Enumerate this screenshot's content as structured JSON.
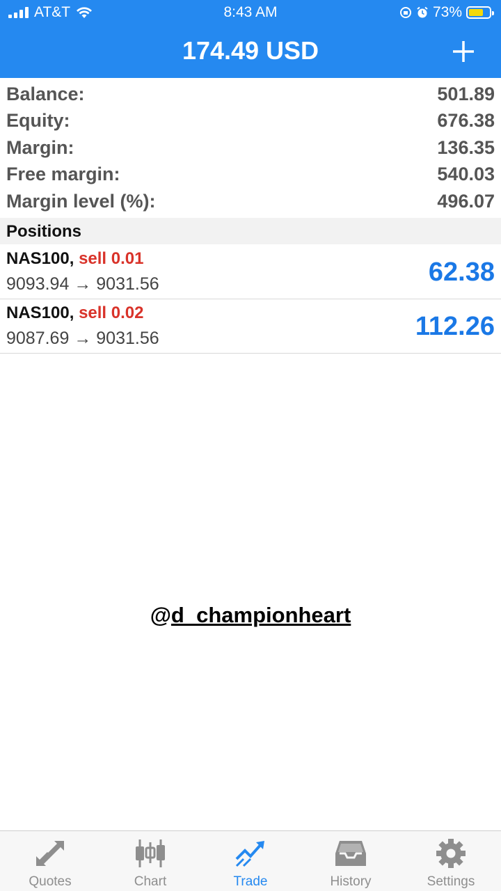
{
  "status_bar": {
    "carrier": "AT&T",
    "time": "8:43 AM",
    "battery": "73%"
  },
  "header": {
    "title": "174.49 USD"
  },
  "account": [
    {
      "label": "Balance:",
      "value": "501.89"
    },
    {
      "label": "Equity:",
      "value": "676.38"
    },
    {
      "label": "Margin:",
      "value": "136.35"
    },
    {
      "label": "Free margin:",
      "value": "540.03"
    },
    {
      "label": "Margin level (%):",
      "value": "496.07"
    }
  ],
  "positions": {
    "title": "Positions",
    "items": [
      {
        "symbol": "NAS100,",
        "side": "sell 0.01",
        "prices": "9093.94 → 9031.56",
        "profit": "62.38"
      },
      {
        "symbol": "NAS100,",
        "side": "sell 0.02",
        "prices": "9087.69 → 9031.56",
        "profit": "112.26"
      }
    ]
  },
  "watermark": {
    "at": "@",
    "handle": "d_championheart"
  },
  "tabs": [
    {
      "label": "Quotes",
      "icon": "quotes-icon",
      "active": false
    },
    {
      "label": "Chart",
      "icon": "chart-icon",
      "active": false
    },
    {
      "label": "Trade",
      "icon": "trade-icon",
      "active": true
    },
    {
      "label": "History",
      "icon": "history-icon",
      "active": false
    },
    {
      "label": "Settings",
      "icon": "settings-icon",
      "active": false
    }
  ],
  "colors": {
    "accent": "#2589f0",
    "sell": "#d9332a",
    "profit": "#1a78e6",
    "battery": "#f5d90a"
  }
}
